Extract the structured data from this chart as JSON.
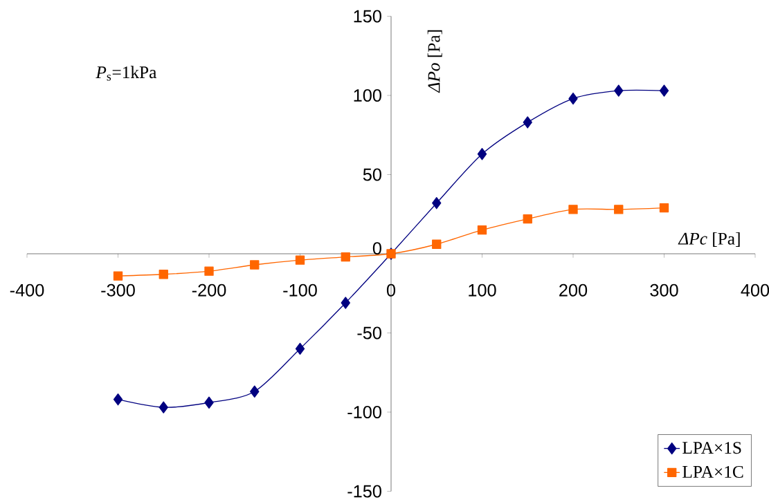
{
  "chart_data": {
    "type": "line",
    "x": [
      -300,
      -250,
      -200,
      -150,
      -100,
      -50,
      0,
      50,
      100,
      150,
      200,
      250,
      300
    ],
    "series": [
      {
        "name": "LPA×1S",
        "color": "#000080",
        "marker": "diamond",
        "values": [
          -92,
          -97,
          -94,
          -87,
          -60,
          -31,
          0,
          32,
          63,
          83,
          98,
          103,
          103
        ]
      },
      {
        "name": "LPA×1C",
        "color": "#ff6600",
        "marker": "square",
        "values": [
          -14,
          -13,
          -11,
          -7,
          -4,
          -2,
          0,
          6,
          15,
          22,
          28,
          28,
          29
        ]
      }
    ],
    "xlabel": "*ΔPc* [Pa]",
    "ylabel": "*ΔPo* [Pa]",
    "annotations": [
      "*P*$_{s}$=1kPa"
    ],
    "xlim": [
      -400,
      400
    ],
    "ylim": [
      -150,
      150
    ],
    "xticks": [
      -400,
      -300,
      -200,
      -100,
      0,
      100,
      200,
      300,
      400
    ],
    "yticks": [
      -150,
      -100,
      -50,
      0,
      50,
      100,
      150
    ],
    "legend": "bottom right"
  }
}
